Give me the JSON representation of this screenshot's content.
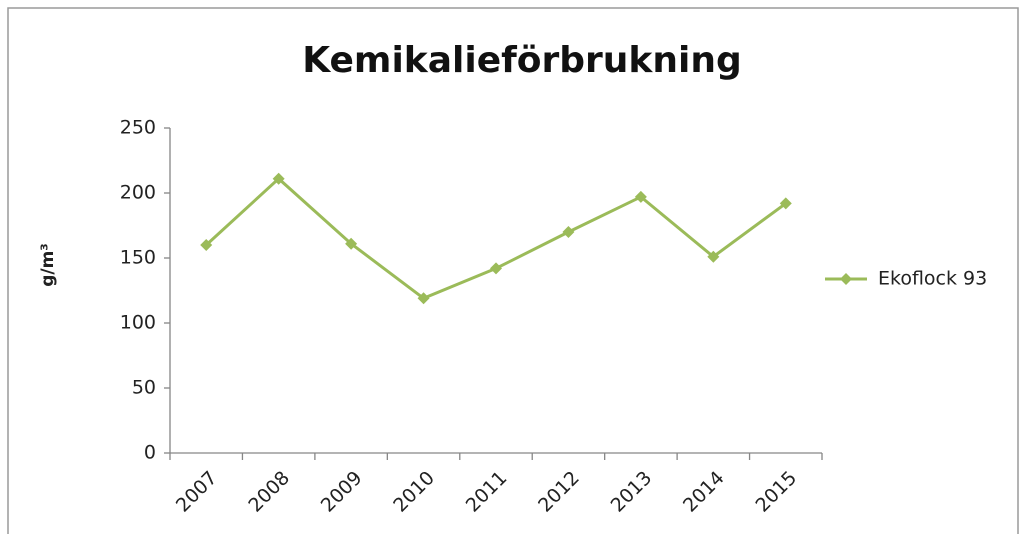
{
  "chart_data": {
    "type": "line",
    "title": "Kemikalieförbrukning",
    "y_label": "g/m³",
    "categories": [
      "2007",
      "2008",
      "2009",
      "2010",
      "2011",
      "2012",
      "2013",
      "2014",
      "2015"
    ],
    "series": [
      {
        "name": "Ekoflock 93",
        "color": "#9bbb59",
        "values": [
          160,
          211,
          161,
          119,
          142,
          170,
          197,
          151,
          192
        ]
      }
    ],
    "ylim": [
      0,
      250
    ],
    "yticks": [
      0,
      50,
      100,
      150,
      200,
      250
    ],
    "grid": false,
    "legend": "right"
  }
}
